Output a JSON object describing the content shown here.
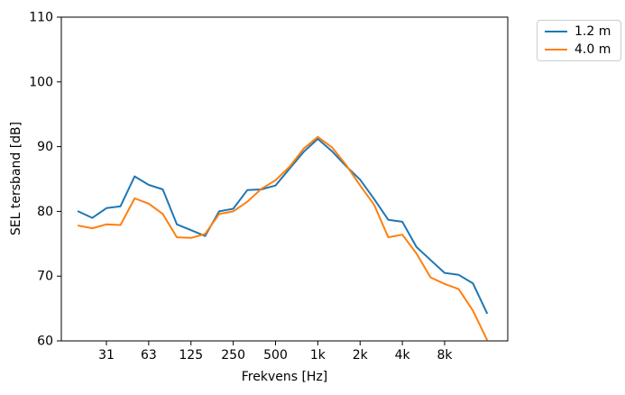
{
  "figure": {
    "xlabel": "Frekvens [Hz]",
    "ylabel": "SEL tersband [dB]",
    "background": "#ffffff",
    "spine_color": "#000000"
  },
  "legend": {
    "entries": [
      {
        "label": "1.2 m",
        "color": "#1f77b4"
      },
      {
        "label": "4.0 m",
        "color": "#ff7f0e"
      }
    ]
  },
  "chart_data": {
    "type": "line",
    "title": "",
    "xlabel": "Frekvens [Hz]",
    "ylabel": "SEL tersband [dB]",
    "x_scale": "log_third_octave_bands",
    "grid": false,
    "legend_position": "outside-top-right",
    "ylim": [
      60,
      110
    ],
    "yticks": [
      60,
      70,
      80,
      90,
      100,
      110
    ],
    "xtick_labels": [
      "31",
      "63",
      "125",
      "250",
      "500",
      "1k",
      "2k",
      "4k",
      "8k"
    ],
    "xtick_band_indices": [
      2,
      5,
      8,
      11,
      14,
      17,
      20,
      23,
      26
    ],
    "categories": [
      20,
      25,
      31.5,
      40,
      50,
      63,
      80,
      100,
      125,
      160,
      200,
      250,
      315,
      400,
      500,
      630,
      800,
      1000,
      1250,
      1600,
      2000,
      2500,
      3150,
      4000,
      5000,
      6300,
      8000,
      10000,
      12500,
      16000
    ],
    "series": [
      {
        "name": "1.2 m",
        "color": "#1f77b4",
        "values": [
          80.0,
          79.0,
          80.5,
          80.8,
          85.4,
          84.1,
          83.4,
          78.0,
          77.1,
          76.2,
          80.0,
          80.4,
          83.3,
          83.4,
          84.0,
          86.6,
          89.2,
          91.2,
          89.3,
          87.0,
          84.9,
          81.9,
          78.7,
          78.4,
          74.5,
          72.5,
          70.5,
          70.2,
          68.9,
          64.3
        ]
      },
      {
        "name": "4.0 m",
        "color": "#ff7f0e",
        "values": [
          77.8,
          77.4,
          78.0,
          77.9,
          82.0,
          81.2,
          79.6,
          76.0,
          75.9,
          76.5,
          79.6,
          80.0,
          81.5,
          83.5,
          84.8,
          86.9,
          89.7,
          91.5,
          89.9,
          87.2,
          84.0,
          81.0,
          76.0,
          76.4,
          73.5,
          69.8,
          68.8,
          68.0,
          64.7,
          60.2
        ]
      }
    ]
  }
}
